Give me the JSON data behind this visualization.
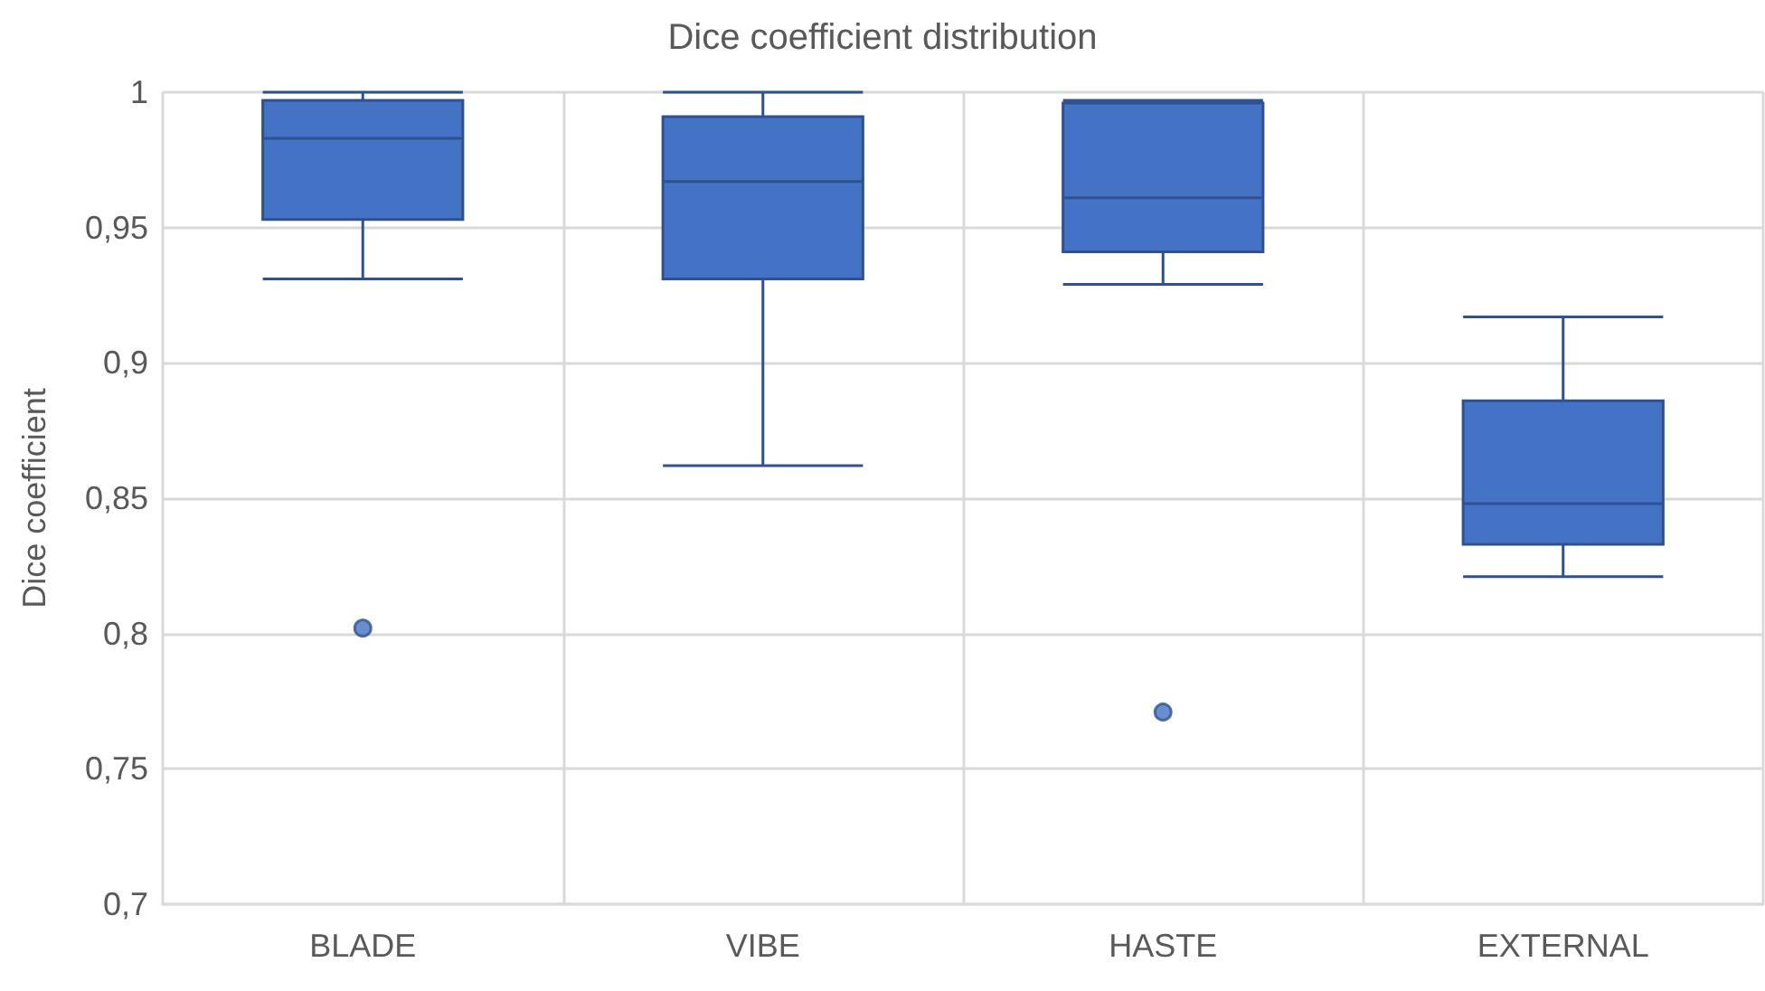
{
  "chart_data": {
    "type": "box",
    "title": "Dice coefficient distribution",
    "ylabel": "Dice coefficient",
    "categories": [
      "BLADE",
      "VIBE",
      "HASTE",
      "EXTERNAL"
    ],
    "color": "#4472c4",
    "boxes": [
      {
        "low": 0.931,
        "q1": 0.953,
        "median": 0.983,
        "q3": 0.997,
        "high": 1.0,
        "outliers": [
          0.802
        ]
      },
      {
        "low": 0.862,
        "q1": 0.931,
        "median": 0.967,
        "q3": 0.991,
        "high": 1.0
      },
      {
        "low": 0.929,
        "q1": 0.941,
        "median": 0.961,
        "q3": 0.996,
        "high": 0.997,
        "outliers": [
          0.771
        ]
      },
      {
        "low": 0.821,
        "q1": 0.833,
        "median": 0.848,
        "q3": 0.886,
        "high": 0.917
      }
    ],
    "ylim": [
      0.7,
      1
    ],
    "yticks": [
      {
        "value": 0.7,
        "label": "0,7"
      },
      {
        "value": 0.75,
        "label": "0,75"
      },
      {
        "value": 0.8,
        "label": "0,8"
      },
      {
        "value": 0.85,
        "label": "0,85"
      },
      {
        "value": 0.9,
        "label": "0,9"
      },
      {
        "value": 0.95,
        "label": "0,95"
      },
      {
        "value": 1,
        "label": "1"
      }
    ],
    "grid": true
  }
}
